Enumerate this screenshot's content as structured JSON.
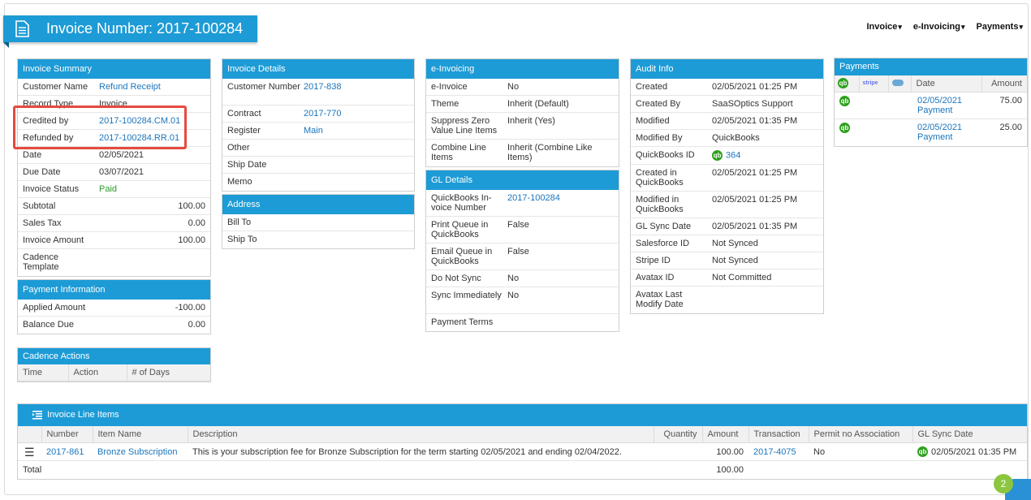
{
  "title": "Invoice Number: 2017-100284",
  "menu": [
    "Invoice",
    "e-Invoicing",
    "Payments"
  ],
  "invoice_summary": {
    "head": "Invoice Summary",
    "rows": [
      {
        "k": "Customer Name",
        "v": "Refund Receipt"
      },
      {
        "k": "Record Type",
        "v": "Invoice"
      },
      {
        "k": "Credited by",
        "v": "2017-100284.CM.01"
      },
      {
        "k": "Refunded by",
        "v": "2017-100284.RR.01"
      },
      {
        "k": "Date",
        "v": "02/05/2021"
      },
      {
        "k": "Due Date",
        "v": "03/07/2021"
      },
      {
        "k": "Invoice Status",
        "v": "Paid"
      },
      {
        "k": "Subtotal",
        "v": "100.00"
      },
      {
        "k": "Sales Tax",
        "v": "0.00"
      },
      {
        "k": "Invoice Amount",
        "v": "100.00"
      },
      {
        "k": "Cadence Template",
        "v": ""
      }
    ]
  },
  "payment_information": {
    "head": "Payment Information",
    "rows": [
      {
        "k": "Applied Amount",
        "v": "-100.00"
      },
      {
        "k": "Balance Due",
        "v": "0.00"
      }
    ]
  },
  "cadence_actions": {
    "head": "Cadence Actions",
    "cols": [
      "Time",
      "Action",
      "# of Days"
    ]
  },
  "invoice_details": {
    "head": "Invoice Details",
    "rows": [
      {
        "k": "Customer Number",
        "v": "2017-838"
      },
      {
        "k": "Contract",
        "v": "2017-770"
      },
      {
        "k": "Register",
        "v": "Main"
      },
      {
        "k": "Other",
        "v": ""
      },
      {
        "k": "Ship Date",
        "v": ""
      },
      {
        "k": "Memo",
        "v": ""
      }
    ]
  },
  "address": {
    "head": "Address",
    "rows": [
      {
        "k": "Bill To",
        "v": ""
      },
      {
        "k": "Ship To",
        "v": ""
      }
    ]
  },
  "e_invoicing": {
    "head": "e-Invoicing",
    "rows": [
      {
        "k": "e-Invoice",
        "v": "No"
      },
      {
        "k": "Theme",
        "v": "Inherit (Default)"
      },
      {
        "k": "Suppress Zero Value Line Items",
        "v": "Inherit (Yes)"
      },
      {
        "k": "Combine Line Items",
        "v": "Inherit (Combine Like Items)"
      }
    ]
  },
  "gl_details": {
    "head": "GL Details",
    "rows": [
      {
        "k": "QuickBooks In-voice Number",
        "v": "2017-100284"
      },
      {
        "k": "Print Queue in QuickBooks",
        "v": "False"
      },
      {
        "k": "Email Queue in QuickBooks",
        "v": "False"
      },
      {
        "k": "Do Not Sync",
        "v": "No"
      },
      {
        "k": "Sync Immediately",
        "v": "No"
      },
      {
        "k": "Payment Terms",
        "v": ""
      }
    ]
  },
  "audit_info": {
    "head": "Audit Info",
    "rows": [
      {
        "k": "Created",
        "v": "02/05/2021 01:25 PM"
      },
      {
        "k": "Created By",
        "v": "SaaSOptics Support"
      },
      {
        "k": "Modified",
        "v": "02/05/2021 01:35 PM"
      },
      {
        "k": "Modified By",
        "v": "QuickBooks"
      },
      {
        "k": "QuickBooks ID",
        "v": "364"
      },
      {
        "k": "Created in QuickBooks",
        "v": "02/05/2021 01:25 PM"
      },
      {
        "k": "Modified in QuickBooks",
        "v": "02/05/2021 01:25 PM"
      },
      {
        "k": "GL Sync Date",
        "v": "02/05/2021 01:35 PM"
      },
      {
        "k": "Salesforce ID",
        "v": "Not Synced"
      },
      {
        "k": "Stripe ID",
        "v": "Not Synced"
      },
      {
        "k": "Avatax ID",
        "v": "Not Committed"
      },
      {
        "k": "Avatax Last Modify Date",
        "v": ""
      }
    ]
  },
  "payments": {
    "head": "Payments",
    "cols": {
      "qb": "qb",
      "stripe": "stripe",
      "date": "Date",
      "amount": "Amount"
    },
    "rows": [
      {
        "date": "02/05/2021",
        "type": "Payment",
        "amount": "75.00"
      },
      {
        "date": "02/05/2021",
        "type": "Payment",
        "amount": "25.00"
      }
    ]
  },
  "line_items": {
    "head": "Invoice Line Items",
    "cols": [
      "Number",
      "Item Name",
      "Description",
      "Quantity",
      "Amount",
      "Transaction",
      "Permit no Association",
      "GL Sync Date"
    ],
    "rows": [
      {
        "number": "2017-861",
        "item": "Bronze Subscription",
        "description": "This is your subscription fee for Bronze Subscription for the term starting 02/05/2021 and ending 02/04/2022.",
        "quantity": "",
        "amount": "100.00",
        "transaction": "2017-4075",
        "permit": "No",
        "gl_sync": "02/05/2021 01:35 PM"
      }
    ],
    "total_label": "Total",
    "total_amount": "100.00"
  },
  "badge_count": "2"
}
